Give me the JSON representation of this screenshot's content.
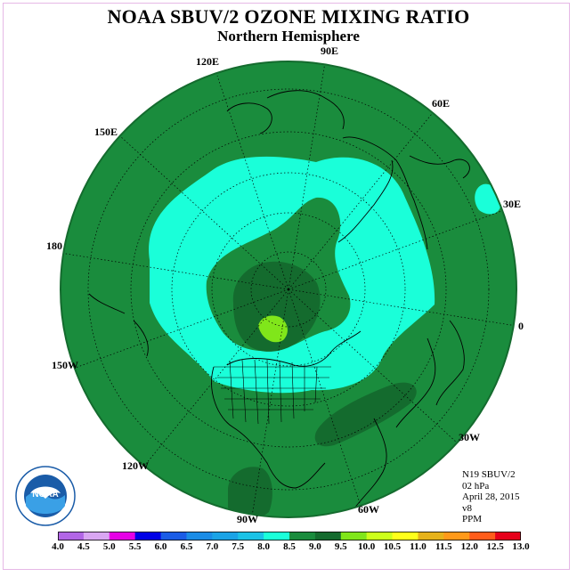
{
  "title": "NOAA SBUV/2 OZONE MIXING RATIO",
  "subtitle": "Northern Hemisphere",
  "longitude_labels": [
    "90E",
    "60E",
    "30E",
    "0",
    "30W",
    "60W",
    "90W",
    "120W",
    "150W",
    "180",
    "150E",
    "120E"
  ],
  "info": {
    "satellite": "N19 SBUV/2",
    "level": "02 hPa",
    "date": "April 28, 2015",
    "version": "v8",
    "units": "PPM"
  },
  "colorbar": {
    "labels": [
      "4.0",
      "4.5",
      "5.0",
      "5.5",
      "6.0",
      "6.5",
      "7.0",
      "7.5",
      "8.0",
      "8.5",
      "9.0",
      "9.5",
      "10.0",
      "10.5",
      "11.0",
      "11.5",
      "12.0",
      "12.5",
      "13.0"
    ],
    "colors": [
      "#b266e6",
      "#d9a6f2",
      "#e600e6",
      "#0000e6",
      "#1a5ce6",
      "#1a8ce6",
      "#1aa3e6",
      "#1ac2e6",
      "#1affd9",
      "#1a8c3d",
      "#146b2e",
      "#80e61a",
      "#ccff1a",
      "#ffff1a",
      "#e6b21a",
      "#ff9919",
      "#ff5c1a",
      "#e6001a",
      "#8c5a3c"
    ]
  },
  "map_colors": {
    "ocean_fill": "#1a8c3d",
    "level_7_5_8": "#1affd9",
    "level_8_5_9": "#146b2e",
    "level_9_9_5": "#80e61a"
  },
  "logo_text": "NOAA"
}
